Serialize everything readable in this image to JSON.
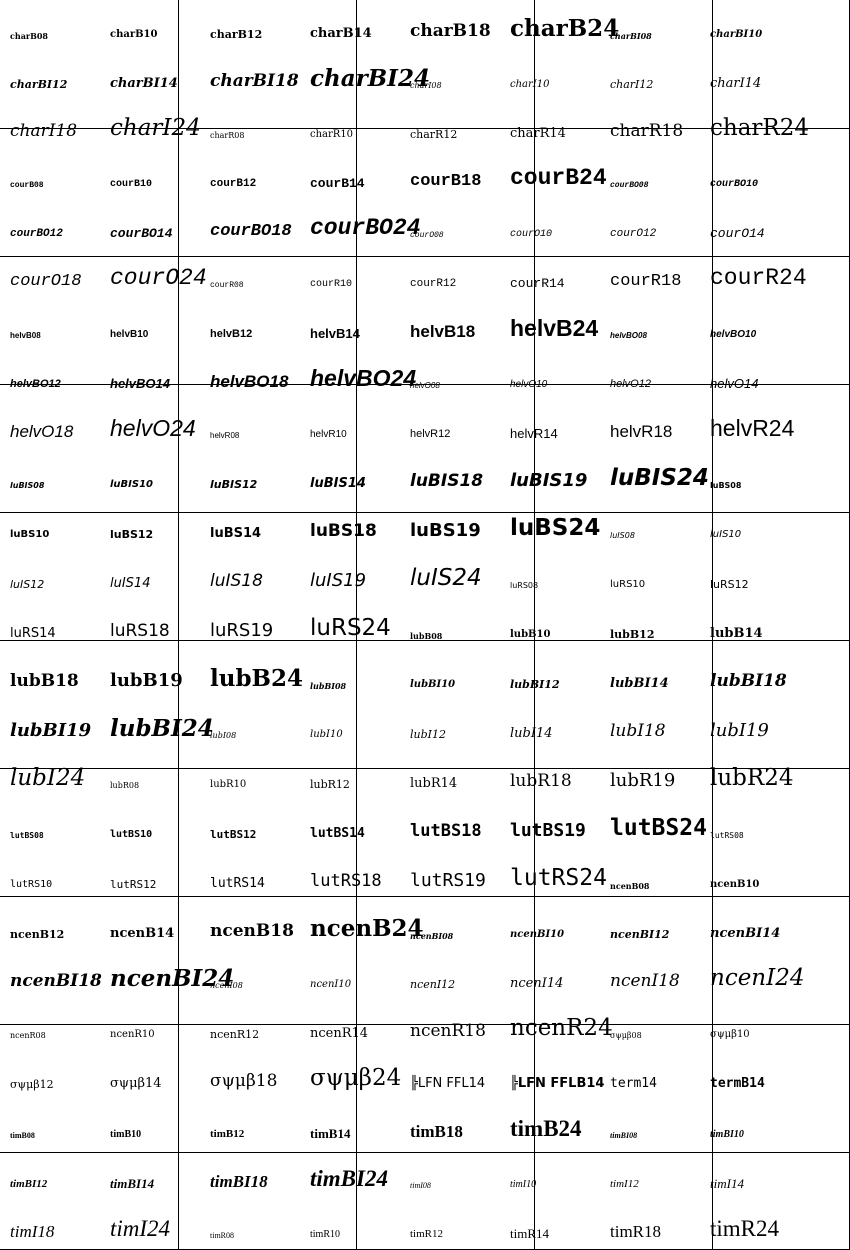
{
  "fonts": [
    "charB08",
    "charB10",
    "charB12",
    "charB14",
    "charB18",
    "charB24",
    "charBI08",
    "charBI10",
    "charBI12",
    "charBI14",
    "charBI18",
    "charBI24",
    "charI08",
    "charI10",
    "charI12",
    "charI14",
    "charI18",
    "charI24",
    "charR08",
    "charR10",
    "charR12",
    "charR14",
    "charR18",
    "charR24",
    "courB08",
    "courB10",
    "courB12",
    "courB14",
    "courB18",
    "courB24",
    "courBO08",
    "courBO10",
    "courBO12",
    "courBO14",
    "courBO18",
    "courBO24",
    "courO08",
    "courO10",
    "courO12",
    "courO14",
    "courO18",
    "courO24",
    "courR08",
    "courR10",
    "courR12",
    "courR14",
    "courR18",
    "courR24",
    "helvB08",
    "helvB10",
    "helvB12",
    "helvB14",
    "helvB18",
    "helvB24",
    "helvBO08",
    "helvBO10",
    "helvBO12",
    "helvBO14",
    "helvBO18",
    "helvBO24",
    "helvO08",
    "helvO10",
    "helvO12",
    "helvO14",
    "helvO18",
    "helvO24",
    "helvR08",
    "helvR10",
    "helvR12",
    "helvR14",
    "helvR18",
    "helvR24",
    "luBIS08",
    "luBIS10",
    "luBIS12",
    "luBIS14",
    "luBIS18",
    "luBIS19",
    "luBIS24",
    "luBS08",
    "luBS10",
    "luBS12",
    "luBS14",
    "luBS18",
    "luBS19",
    "luBS24",
    "luIS08",
    "luIS10",
    "luIS12",
    "luIS14",
    "luIS18",
    "luIS19",
    "luIS24",
    "luRS08",
    "luRS10",
    "luRS12",
    "luRS14",
    "luRS18",
    "luRS19",
    "luRS24",
    "lubB08",
    "lubB10",
    "lubB12",
    "lubB14",
    "lubB18",
    "lubB19",
    "lubB24",
    "lubBI08",
    "lubBI10",
    "lubBI12",
    "lubBI14",
    "lubBI18",
    "lubBI19",
    "lubBI24",
    "lubI08",
    "lubI10",
    "lubI12",
    "lubI14",
    "lubI18",
    "lubI19",
    "lubI24",
    "lubR08",
    "lubR10",
    "lubR12",
    "lubR14",
    "lubR18",
    "lubR19",
    "lubR24",
    "lutBS08",
    "lutBS10",
    "lutBS12",
    "lutBS14",
    "lutBS18",
    "lutBS19",
    "lutBS24",
    "lutRS08",
    "lutRS10",
    "lutRS12",
    "lutRS14",
    "lutRS18",
    "lutRS19",
    "lutRS24",
    "ncenB08",
    "ncenB10",
    "ncenB12",
    "ncenB14",
    "ncenB18",
    "ncenB24",
    "ncenBI08",
    "ncenBI10",
    "ncenBI12",
    "ncenBI14",
    "ncenBI18",
    "ncenBI24",
    "ncenI08",
    "ncenI10",
    "ncenI12",
    "ncenI14",
    "ncenI18",
    "ncenI24",
    "ncenR08",
    "ncenR10",
    "ncenR12",
    "ncenR14",
    "ncenR18",
    "ncenR24",
    "σψμβ08",
    "σψμβ10",
    "σψμβ12",
    "σψμβ14",
    "σψμβ18",
    "σψμβ24",
    "╠LFN FFL14",
    "╠LFN FFLB14",
    "term14",
    "termB14",
    "timB08",
    "timB10",
    "timB12",
    "timB14",
    "timB18",
    "timB24",
    "timBI08",
    "timBI10",
    "timBI12",
    "timBI14",
    "timBI18",
    "timBI24",
    "timI08",
    "timI10",
    "timI12",
    "timI14",
    "timI18",
    "timI24",
    "timR08",
    "timR10",
    "timR12",
    "timR14",
    "timR18",
    "timR24"
  ]
}
